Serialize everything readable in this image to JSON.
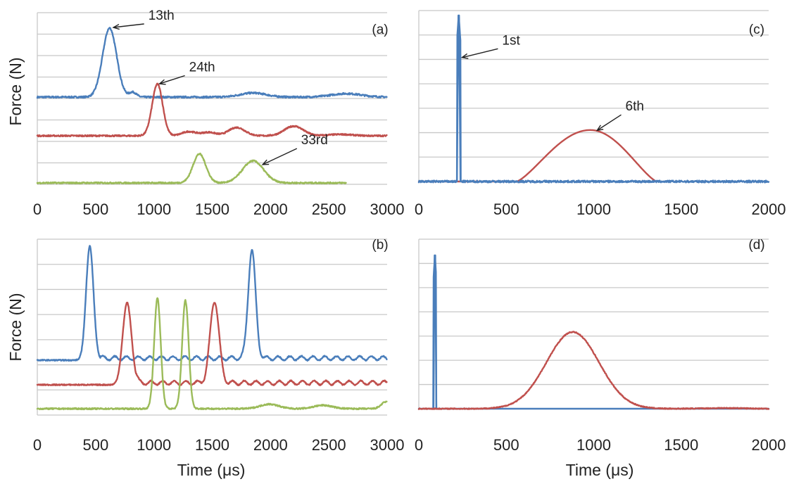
{
  "colors": {
    "blue": "#4a7ebb",
    "red": "#c0504d",
    "green": "#9bbb59"
  },
  "chart_data": [
    {
      "id": "a",
      "type": "line",
      "panel_label": "(a)",
      "ylabel": "Force (N)",
      "xlabel": "",
      "xlim": [
        0,
        3000
      ],
      "xticks": [
        "0",
        "500",
        "1000",
        "1500",
        "2000",
        "2500",
        "3000"
      ],
      "grid": true,
      "series": [
        {
          "color": "blue",
          "baseline": 0.0,
          "x_end": 3000,
          "noise": 0.012,
          "peaks": [
            [
              620,
              1.0,
              60
            ],
            [
              820,
              0.07,
              30
            ],
            [
              1850,
              0.06,
              110
            ],
            [
              2650,
              0.05,
              130
            ]
          ]
        },
        {
          "color": "red",
          "baseline": 0.0,
          "x_end": 3000,
          "noise": 0.01,
          "peaks": [
            [
              1030,
              0.75,
              45
            ],
            [
              1300,
              0.06,
              60
            ],
            [
              1470,
              0.05,
              60
            ],
            [
              1710,
              0.12,
              70
            ],
            [
              2200,
              0.14,
              80
            ],
            [
              2600,
              0.02,
              100
            ]
          ]
        },
        {
          "color": "green",
          "baseline": 0.0,
          "x_end": 2650,
          "noise": 0.01,
          "peaks": [
            [
              1390,
              0.42,
              55
            ],
            [
              1850,
              0.32,
              90
            ]
          ]
        }
      ],
      "annotations": [
        {
          "text": "13th",
          "x": 620,
          "series": 0
        },
        {
          "text": "24th",
          "x": 1030,
          "series": 1
        },
        {
          "text": "33rd",
          "x": 1900,
          "series": 2
        }
      ]
    },
    {
      "id": "b",
      "type": "line",
      "panel_label": "(b)",
      "ylabel": "Force (N)",
      "xlabel": "Time (μs)",
      "xlim": [
        0,
        3000
      ],
      "xticks": [
        "0",
        "500",
        "1000",
        "1500",
        "2000",
        "2500",
        "3000"
      ],
      "grid": true,
      "series": [
        {
          "color": "blue",
          "baseline": 0.0,
          "x_end": 3000,
          "noise": 0.005,
          "ripple": [
            540,
            3000,
            0.035,
            100
          ],
          "peaks": [
            [
              450,
              1.0,
              32
            ],
            [
              1840,
              0.95,
              32
            ]
          ]
        },
        {
          "color": "red",
          "baseline": 0.0,
          "x_end": 3000,
          "noise": 0.005,
          "ripple": [
            850,
            3000,
            0.035,
            100
          ],
          "peaks": [
            [
              770,
              0.72,
              38
            ],
            [
              1520,
              0.72,
              38
            ]
          ]
        },
        {
          "color": "green",
          "baseline": 0.0,
          "x_end": 3000,
          "noise": 0.006,
          "peaks": [
            [
              1030,
              0.97,
              28
            ],
            [
              1270,
              0.95,
              28
            ],
            [
              1990,
              0.04,
              80
            ],
            [
              2450,
              0.03,
              80
            ],
            [
              2990,
              0.06,
              40
            ]
          ]
        }
      ]
    },
    {
      "id": "c",
      "type": "line",
      "panel_label": "(c)",
      "xlabel": "",
      "xlim": [
        0,
        2000
      ],
      "xticks": [
        "0",
        "500",
        "1000",
        "1500",
        "2000"
      ],
      "grid": true,
      "series": [
        {
          "color": "red",
          "x_end": 1360,
          "noise": 0.0,
          "hump": [
            560,
            980,
            1360,
            0.31
          ]
        },
        {
          "color": "blue",
          "x_end": 2000,
          "noise": 0.006,
          "spike": [
            228,
            1.0,
            10
          ]
        }
      ],
      "annotations": [
        {
          "text": "1st",
          "x": 235,
          "series": 1
        },
        {
          "text": "6th",
          "x": 1000,
          "series": 0
        }
      ]
    },
    {
      "id": "d",
      "type": "line",
      "panel_label": "(d)",
      "xlabel": "Time (μs)",
      "xlim": [
        0,
        2000
      ],
      "xticks": [
        "0",
        "500",
        "1000",
        "1500",
        "2000"
      ],
      "grid": true,
      "series": [
        {
          "color": "blue",
          "x_end": 2000,
          "noise": 0.0,
          "spike": [
            92,
            1.0,
            8
          ]
        },
        {
          "color": "red",
          "x_end": 2000,
          "noise": 0.003,
          "peaks": [
            [
              880,
              0.5,
              150
            ],
            [
              1750,
              0.004,
              120
            ]
          ]
        }
      ]
    }
  ]
}
